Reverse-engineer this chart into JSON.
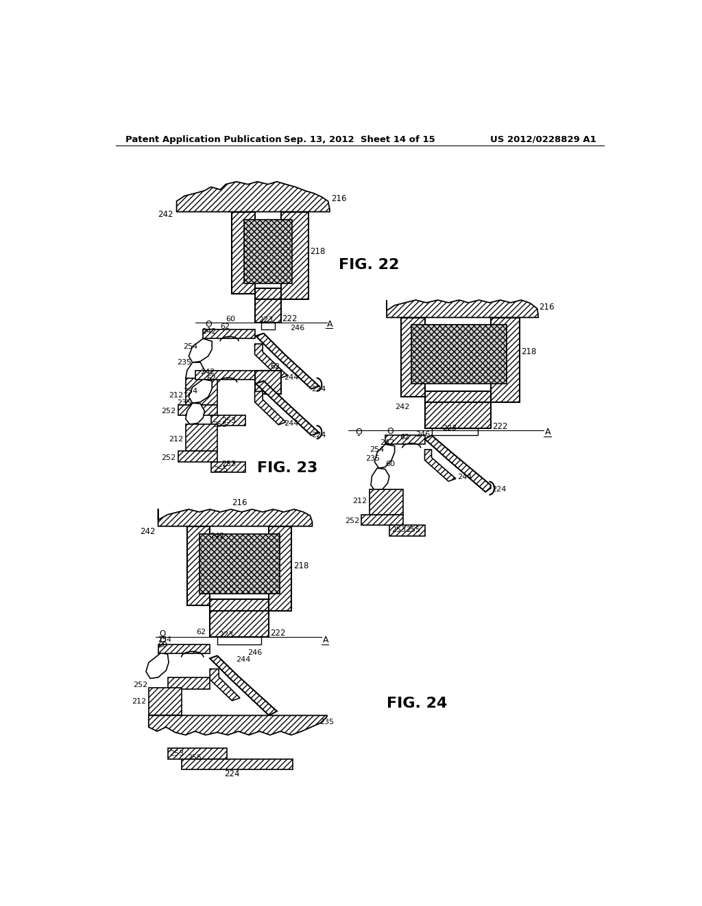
{
  "header_left": "Patent Application Publication",
  "header_center": "Sep. 13, 2012  Sheet 14 of 15",
  "header_right": "US 2012/0228829 A1",
  "background_color": "#ffffff",
  "fig22_label": "FIG. 22",
  "fig23_label": "FIG. 23",
  "fig24_label": "FIG. 24"
}
